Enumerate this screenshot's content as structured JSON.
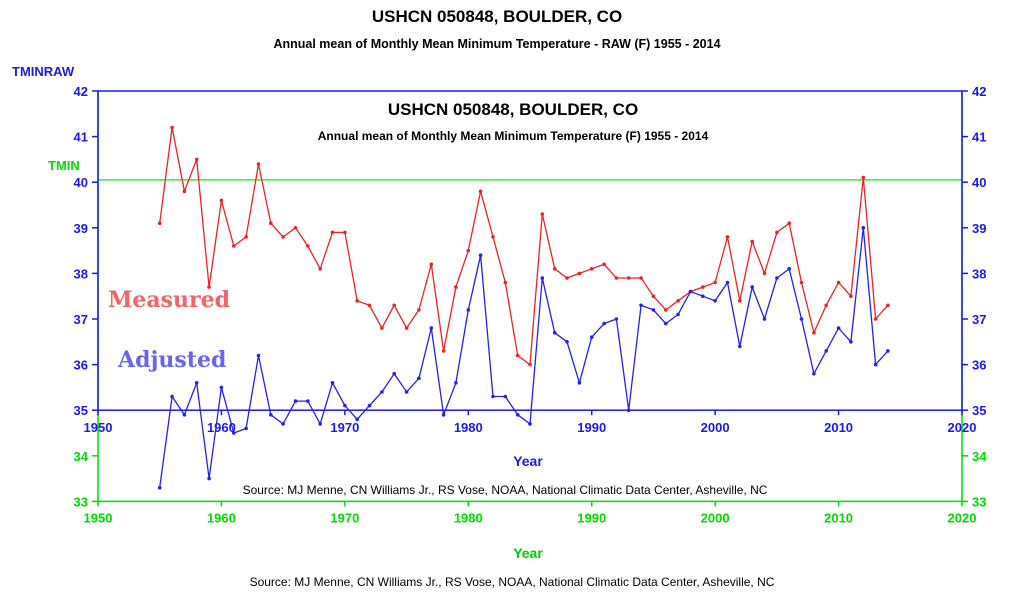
{
  "chart_data": [
    {
      "type": "line",
      "role": "outer",
      "title": "USHCN 050848, BOULDER, CO",
      "subtitle": "Annual mean of Monthly Mean Minimum Temperature - RAW (F) 1955 - 2014",
      "ylabel": "TMINRAW",
      "xlabel": "Year",
      "source": "Source: MJ Menne, CN Williams Jr., RS Vose, NOAA, National Climatic Data Center, Asheville, NC",
      "xlim": [
        1950,
        2020
      ],
      "ylim": [
        33,
        42
      ],
      "x_ticks": [
        "1950",
        "1960",
        "1970",
        "1980",
        "1990",
        "2000",
        "2010",
        "2020"
      ],
      "y_ticks": [
        "33",
        "34",
        "35",
        "36",
        "37",
        "38",
        "39",
        "40",
        "41",
        "42"
      ],
      "axis_color": "#00dd00",
      "ref_line": {
        "label": "TMIN",
        "y": 40.05,
        "color": "#00dd00"
      },
      "series": [
        {
          "name": "Measured",
          "color": "#ee2222",
          "x": [
            1955,
            1956,
            1957,
            1958,
            1959,
            1960,
            1961,
            1962,
            1963,
            1964,
            1965,
            1966,
            1967,
            1968,
            1969,
            1970,
            1971,
            1972,
            1973,
            1974,
            1975,
            1976,
            1977,
            1978,
            1979,
            1980,
            1981,
            1982,
            1983,
            1984,
            1985,
            1986,
            1987,
            1988,
            1989,
            1990,
            1991,
            1992,
            1993,
            1994,
            1995,
            1996,
            1997,
            1998,
            1999,
            2000,
            2001,
            2002,
            2003,
            2004,
            2005,
            2006,
            2007,
            2008,
            2009,
            2010,
            2011,
            2012,
            2013,
            2014
          ],
          "values": [
            39.1,
            41.2,
            39.8,
            40.5,
            37.7,
            39.6,
            38.6,
            38.8,
            40.4,
            39.1,
            38.8,
            39.0,
            38.6,
            38.1,
            38.9,
            38.9,
            37.4,
            37.3,
            36.8,
            37.3,
            36.8,
            37.2,
            38.2,
            36.3,
            37.7,
            38.5,
            39.8,
            38.8,
            37.8,
            36.2,
            36.0,
            39.3,
            38.1,
            37.9,
            38.0,
            38.1,
            38.2,
            37.9,
            37.9,
            37.9,
            37.5,
            37.2,
            37.4,
            37.6,
            37.7,
            37.8,
            38.8,
            37.4,
            38.7,
            38.0,
            38.9,
            39.1,
            37.8,
            36.7,
            37.3,
            37.8,
            37.5,
            40.1,
            37.0,
            37.3
          ]
        }
      ]
    },
    {
      "type": "line",
      "role": "inner",
      "title": "USHCN 050848, BOULDER, CO",
      "subtitle": "Annual mean of Monthly Mean Minimum Temperature (F) 1955 - 2014",
      "ylabel": "TMIN",
      "xlabel": "Year",
      "source": "Source: MJ Menne, CN Williams Jr., RS Vose, NOAA, National Climatic Data Center, Asheville, NC",
      "xlim": [
        1950,
        2020
      ],
      "ylim": [
        33,
        42
      ],
      "x_ticks": [
        "1950",
        "1960",
        "1970",
        "1980",
        "1990",
        "2000",
        "2010",
        "2020"
      ],
      "y_ticks": [
        "35",
        "36",
        "37",
        "38",
        "39",
        "40",
        "41",
        "42"
      ],
      "axis_color": "#1a1aee",
      "series": [
        {
          "name": "Adjusted",
          "color": "#2222ee",
          "x": [
            1955,
            1956,
            1957,
            1958,
            1959,
            1960,
            1961,
            1962,
            1963,
            1964,
            1965,
            1966,
            1967,
            1968,
            1969,
            1970,
            1971,
            1972,
            1973,
            1974,
            1975,
            1976,
            1977,
            1978,
            1979,
            1980,
            1981,
            1982,
            1983,
            1984,
            1985,
            1986,
            1987,
            1988,
            1989,
            1990,
            1991,
            1992,
            1993,
            1994,
            1995,
            1996,
            1997,
            1998,
            1999,
            2000,
            2001,
            2002,
            2003,
            2004,
            2005,
            2006,
            2007,
            2008,
            2009,
            2010,
            2011,
            2012,
            2013,
            2014
          ],
          "values": [
            33.3,
            35.3,
            34.9,
            35.6,
            33.5,
            35.5,
            34.5,
            34.6,
            36.2,
            34.9,
            34.7,
            35.2,
            35.2,
            34.7,
            35.6,
            35.1,
            34.8,
            35.1,
            35.4,
            35.8,
            35.4,
            35.7,
            36.8,
            34.9,
            35.6,
            37.2,
            38.4,
            35.3,
            35.3,
            34.9,
            34.7,
            37.9,
            36.7,
            36.5,
            35.6,
            36.6,
            36.9,
            37.0,
            35.0,
            37.3,
            37.2,
            36.9,
            37.1,
            37.6,
            37.5,
            37.4,
            37.8,
            36.4,
            37.7,
            37.0,
            37.9,
            38.1,
            37.0,
            35.8,
            36.3,
            36.8,
            36.5,
            39.0,
            36.0,
            36.3
          ]
        }
      ]
    }
  ],
  "annotations": {
    "measured_label": "Measured",
    "measured_color": "#ee6666",
    "adjusted_label": "Adjusted",
    "adjusted_color": "#6666ee"
  }
}
